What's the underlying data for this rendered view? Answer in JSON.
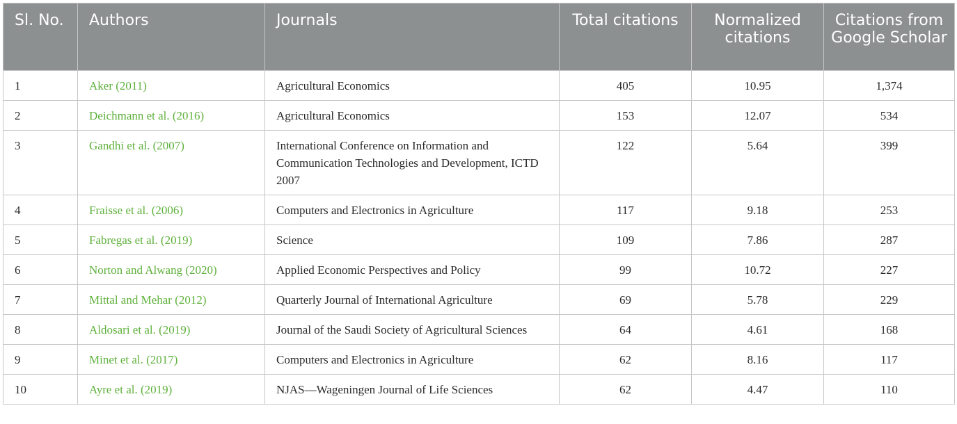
{
  "table": {
    "headers": {
      "sl_no": "Sl. No.",
      "authors": "Authors",
      "journals": "Journals",
      "total_citations": "Total citations",
      "normalized_citations": "Normalized citations",
      "google_scholar": "Citations from Google Scholar"
    },
    "rows": [
      {
        "sl": "1",
        "author": "Aker (2011)",
        "journal": "Agricultural Economics",
        "total": "405",
        "normalized": "10.95",
        "scholar": "1,374"
      },
      {
        "sl": "2",
        "author": "Deichmann et al. (2016)",
        "journal": "Agricultural Economics",
        "total": "153",
        "normalized": "12.07",
        "scholar": "534"
      },
      {
        "sl": "3",
        "author": "Gandhi et al. (2007)",
        "journal": "International Conference on Information and Communication Technologies and Development, ICTD 2007",
        "total": "122",
        "normalized": "5.64",
        "scholar": "399"
      },
      {
        "sl": "4",
        "author": "Fraisse et al. (2006)",
        "journal": "Computers and Electronics in Agriculture",
        "total": "117",
        "normalized": "9.18",
        "scholar": "253"
      },
      {
        "sl": "5",
        "author": "Fabregas et al. (2019)",
        "journal": "Science",
        "total": "109",
        "normalized": "7.86",
        "scholar": "287"
      },
      {
        "sl": "6",
        "author": "Norton and Alwang (2020)",
        "journal": "Applied Economic Perspectives and Policy",
        "total": "99",
        "normalized": "10.72",
        "scholar": "227"
      },
      {
        "sl": "7",
        "author": "Mittal and Mehar (2012)",
        "journal": "Quarterly Journal of International Agriculture",
        "total": "69",
        "normalized": "5.78",
        "scholar": "229"
      },
      {
        "sl": "8",
        "author": "Aldosari et al. (2019)",
        "journal": "Journal of the Saudi Society of Agricultural Sciences",
        "total": "64",
        "normalized": "4.61",
        "scholar": "168"
      },
      {
        "sl": "9",
        "author": "Minet et al. (2017)",
        "journal": "Computers and Electronics in Agriculture",
        "total": "62",
        "normalized": "8.16",
        "scholar": "117"
      },
      {
        "sl": "10",
        "author": "Ayre et al. (2019)",
        "journal": "NJAS—Wageningen Journal of Life Sciences",
        "total": "62",
        "normalized": "4.47",
        "scholar": "110"
      }
    ]
  }
}
